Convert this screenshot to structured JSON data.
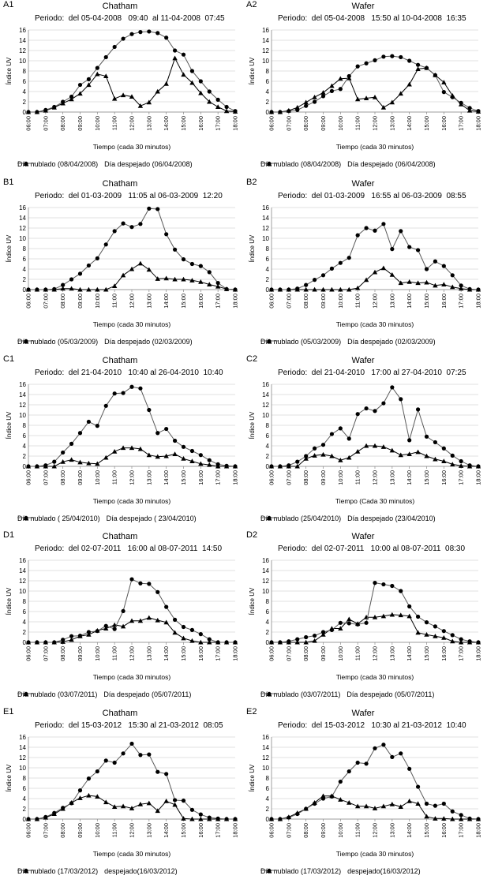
{
  "chart_data": [
    {
      "id": "A1",
      "label": "A1",
      "type": "line",
      "title": "Chatham",
      "period": "Periodo:  del 05-04-2008   09:40  al 11-04-2008  07:45",
      "xlabel": "Tiempo (cada 30 minutos)",
      "ylabel": "Índice UV",
      "ylim": [
        0,
        16
      ],
      "yticks": [
        "0",
        "2",
        "4",
        "6",
        "8",
        "10",
        "12",
        "14",
        "16"
      ],
      "xticks": [
        "06:00",
        "07:00",
        "08:00",
        "09:00",
        "10:00",
        "11:00",
        "12:00",
        "13:00",
        "14:00",
        "15:00",
        "16:00",
        "17:00",
        "18:00"
      ],
      "series": [
        {
          "name": "Día nublado (08/04/2008)",
          "marker": "triangle",
          "values": [
            0,
            0,
            0.3,
            0.9,
            1.7,
            2.5,
            3.6,
            5.3,
            7.4,
            7,
            2.6,
            3.3,
            3,
            1.2,
            1.9,
            4,
            5.5,
            10.5,
            7.3,
            5.7,
            3.7,
            2,
            1,
            0.2,
            0.1
          ]
        },
        {
          "name": "Día despejado (06/04/2008)",
          "marker": "circle",
          "values": [
            0,
            0,
            0.4,
            1,
            2,
            3,
            5.3,
            6.4,
            8.6,
            10.7,
            12.7,
            14.3,
            15.2,
            15.6,
            15.7,
            15.4,
            14.5,
            12,
            11.2,
            8,
            6,
            4,
            2.4,
            1,
            0.2
          ]
        }
      ]
    },
    {
      "id": "A2",
      "label": "A2",
      "type": "line",
      "title": "Wafer",
      "period": "Periodo:  del 05-04-2008   15:50 al 10-04-2008  16:35",
      "xlabel": "Tiempo (cada 30 minutos)",
      "ylabel": "Índice UV",
      "ylim": [
        0,
        16
      ],
      "yticks": [
        "0",
        "2",
        "4",
        "6",
        "8",
        "10",
        "12",
        "14",
        "16"
      ],
      "xticks": [
        "06:00",
        "07:00",
        "08:00",
        "09:00",
        "10:00",
        "11:00",
        "12:00",
        "13:00",
        "14:00",
        "15:00",
        "16:00",
        "17:00",
        "18:00"
      ],
      "series": [
        {
          "name": "Día nublado (08/04/2008)",
          "marker": "triangle",
          "values": [
            0,
            0,
            0.3,
            0.9,
            1.9,
            2.9,
            3.8,
            5.1,
            6.5,
            6.6,
            2.5,
            2.7,
            2.9,
            0.9,
            1.9,
            3.6,
            5.4,
            8.4,
            8.6,
            7.2,
            5.8,
            3.2,
            1.5,
            0.3,
            0.1
          ]
        },
        {
          "name": "Día despejado (06/04/2008)",
          "marker": "circle",
          "values": [
            0,
            0,
            0.2,
            0.4,
            1.2,
            2,
            3.1,
            4.1,
            4.5,
            7,
            8.9,
            9.5,
            10.1,
            10.8,
            10.9,
            10.7,
            10,
            9.2,
            8.6,
            7.2,
            3.9,
            2.9,
            1.8,
            0.8,
            0.2
          ]
        }
      ]
    },
    {
      "id": "B1",
      "label": "B1",
      "type": "line",
      "title": "Chatham",
      "period": "Periodo:  del 01-03-2009   11:05 al 06-03-2009  12:20",
      "xlabel": "Tiempo (cada 30 minutos)",
      "ylabel": "Índice UV",
      "ylim": [
        0,
        16
      ],
      "yticks": [
        "0",
        "2",
        "4",
        "6",
        "8",
        "10",
        "12",
        "14",
        "16"
      ],
      "xticks": [
        "06:00",
        "07:00",
        "08:00",
        "09:00",
        "10:00",
        "11:00",
        "12:00",
        "13:00",
        "14:00",
        "15:00",
        "16:00",
        "17:00",
        "18:00"
      ],
      "series": [
        {
          "name": "Día nublado (05/03/2009)",
          "marker": "triangle",
          "values": [
            0,
            0,
            0,
            0,
            0.2,
            0.2,
            0,
            0,
            0,
            0,
            0.7,
            2.8,
            4,
            5.1,
            3.9,
            2.1,
            2.2,
            2,
            2,
            1.8,
            1.5,
            1,
            0.6,
            0.1,
            0
          ]
        },
        {
          "name": "Día despejado (02/03/2009)",
          "marker": "circle",
          "values": [
            0,
            0,
            0,
            0.1,
            0.9,
            2,
            3.1,
            4.7,
            6.1,
            8.8,
            11.4,
            12.9,
            12.2,
            12.8,
            15.8,
            15.7,
            10.8,
            7.8,
            5.9,
            5,
            4.6,
            3.4,
            1.3,
            0.1,
            0
          ]
        }
      ]
    },
    {
      "id": "B2",
      "label": "B2",
      "type": "line",
      "title": "Wafer",
      "period": "Periodo:  del 01-03-2009   16:55 al 06-03-2009  08:55",
      "xlabel": "Tiempo (cada 30 minutos)",
      "ylabel": "Índice UV",
      "ylim": [
        0,
        16
      ],
      "yticks": [
        "0",
        "2",
        "4",
        "6",
        "8",
        "10",
        "12",
        "14",
        "16"
      ],
      "xticks": [
        "06:00",
        "07:00",
        "08:00",
        "09:00",
        "10:00",
        "11:00",
        "12:00",
        "13:00",
        "14:00",
        "15:00",
        "16:00",
        "17:00",
        "18:00"
      ],
      "series": [
        {
          "name": "Día nublado (05/03/2009)",
          "marker": "triangle",
          "values": [
            0,
            0,
            0,
            0,
            0,
            0,
            0,
            0,
            0,
            0,
            0.3,
            1.9,
            3.4,
            4.2,
            2.9,
            1.3,
            1.5,
            1.3,
            1.4,
            0.8,
            1,
            0.5,
            0.2,
            0,
            0
          ]
        },
        {
          "name": "Día despejado (02/03/2009)",
          "marker": "circle",
          "values": [
            0,
            0,
            0,
            0.2,
            0.9,
            1.9,
            2.8,
            4.1,
            5.2,
            6.2,
            10.6,
            12,
            11.5,
            12.8,
            7.9,
            11.4,
            8.3,
            7.7,
            4,
            5.5,
            4.6,
            2.8,
            0.8,
            0.1,
            0
          ]
        }
      ]
    },
    {
      "id": "C1",
      "label": "C1",
      "type": "line",
      "title": "Chatham",
      "period": "Periodo:  del 21-04-2010   10:40 al 26-04-2010  10:40",
      "xlabel": "Tiempo (cada 30 minutos)",
      "ylabel": "Índice UV",
      "ylim": [
        0,
        16
      ],
      "yticks": [
        "0",
        "2",
        "4",
        "6",
        "8",
        "10",
        "12",
        "14",
        "16"
      ],
      "xticks": [
        "06:00",
        "07:00",
        "08:00",
        "09:00",
        "10:00",
        "11:00",
        "12:00",
        "13:00",
        "14:00",
        "15:00",
        "16:00",
        "17:00",
        "18:00"
      ],
      "series": [
        {
          "name": "Día nublado ( 25/04/2010)",
          "marker": "triangle",
          "values": [
            0,
            0,
            0,
            0,
            0.9,
            1.3,
            0.8,
            0.6,
            0.5,
            1.7,
            2.9,
            3.6,
            3.6,
            3.4,
            2.2,
            1.9,
            2,
            2.4,
            1.5,
            1,
            0.5,
            0.3,
            0,
            0,
            0
          ]
        },
        {
          "name": "Día despejado ( 23/04/2010)",
          "marker": "circle",
          "values": [
            0,
            0,
            0.2,
            0.9,
            2.7,
            4.4,
            6.5,
            8.7,
            7.9,
            11.8,
            14.2,
            14.3,
            15.5,
            15.2,
            11,
            6.5,
            7.3,
            5,
            3.8,
            3,
            2.2,
            1.2,
            0.4,
            0.1,
            0
          ]
        }
      ]
    },
    {
      "id": "C2",
      "label": "C2",
      "type": "line",
      "title": "Wafer",
      "period": "Periodo:  del 21-04-2010   17:00 al 27-04-2010  07:25",
      "xlabel": "Tiempo (Cada 30 minutos)",
      "ylabel": "Índice UV",
      "ylim": [
        0,
        16
      ],
      "yticks": [
        "0",
        "2",
        "4",
        "6",
        "8",
        "10",
        "12",
        "14",
        "16"
      ],
      "xticks": [
        "06:00",
        "07:00",
        "08:00",
        "09:00",
        "10:00",
        "11:00",
        "12:00",
        "13:00",
        "14:00",
        "15:00",
        "16:00",
        "17:00",
        "18:00"
      ],
      "series": [
        {
          "name": "Día nublado (25/04/2010)",
          "marker": "triangle",
          "values": [
            0,
            0,
            0,
            0,
            1.5,
            2.1,
            2.3,
            2,
            1.2,
            1.7,
            2.9,
            4,
            4,
            3.8,
            3.1,
            2.2,
            2.4,
            2.8,
            2,
            1.4,
            1,
            0.4,
            0.1,
            0,
            0
          ]
        },
        {
          "name": "Día despejado (23/04/2010)",
          "marker": "circle",
          "values": [
            0,
            0,
            0.2,
            0.9,
            2,
            3.5,
            4.2,
            6.3,
            7.4,
            5.4,
            10.2,
            11.3,
            10.8,
            12.3,
            15.4,
            13.1,
            5.1,
            11.1,
            5.8,
            4.7,
            3.5,
            2.1,
            1,
            0.2,
            0
          ]
        }
      ]
    },
    {
      "id": "D1",
      "label": "D1",
      "type": "line",
      "title": "Chatham",
      "period": "Periodo:  del 02-07-2011   16:00 al 08-07-2011  14:50",
      "xlabel": "Tiempo (cada 30 minutos)",
      "ylabel": "Índice UV",
      "ylim": [
        0,
        16
      ],
      "yticks": [
        "0",
        "2",
        "4",
        "6",
        "8",
        "10",
        "12",
        "14",
        "16"
      ],
      "xticks": [
        "06:00",
        "07:00",
        "08:00",
        "09:00",
        "10:00",
        "11:00",
        "12:00",
        "13:00",
        "14:00",
        "15:00",
        "16:00",
        "17:00",
        "18:00"
      ],
      "series": [
        {
          "name": "Día nublado (03/07/2011)",
          "marker": "triangle",
          "values": [
            0,
            0,
            0,
            0,
            0.1,
            0.5,
            1.2,
            1.5,
            2.3,
            2.7,
            3.4,
            3.1,
            4.2,
            4.2,
            4.8,
            4.3,
            3.9,
            1.9,
            0.8,
            0.3,
            0,
            0,
            0,
            0,
            0
          ]
        },
        {
          "name": "Día despejado (05/07/2011)",
          "marker": "circle",
          "values": [
            0,
            0,
            0,
            0,
            0.5,
            1.2,
            1.3,
            2,
            2.2,
            3.2,
            2.6,
            6.1,
            12.3,
            11.5,
            11.4,
            9.8,
            6.9,
            4.4,
            3,
            2.4,
            1.6,
            0.6,
            0,
            0,
            0
          ]
        }
      ]
    },
    {
      "id": "D2",
      "label": "D2",
      "type": "line",
      "title": "Wafer",
      "period": "Periodo:  del 02-07-2011   10:00 al 08-07-2011  08:30",
      "xlabel": "Tiempo (cada 30 minutos)",
      "ylabel": "Índice UV",
      "ylim": [
        0,
        16
      ],
      "yticks": [
        "0",
        "2",
        "4",
        "6",
        "8",
        "10",
        "12",
        "14",
        "16"
      ],
      "xticks": [
        "06:00",
        "07:00",
        "08:00",
        "09:00",
        "10:00",
        "11:00",
        "12:00",
        "13:00",
        "14:00",
        "15:00",
        "16:00",
        "17:00",
        "18:00"
      ],
      "series": [
        {
          "name": "Día nublado (03/07/2011)",
          "marker": "triangle",
          "values": [
            0,
            0,
            0,
            0,
            0,
            0.3,
            1.5,
            2.7,
            2.7,
            4.5,
            3.6,
            4.9,
            4.9,
            5.1,
            5.4,
            5.3,
            5.1,
            1.9,
            1.5,
            1.2,
            0.9,
            0.2,
            0,
            0,
            0
          ]
        },
        {
          "name": "Día despejado (05/07/2011)",
          "marker": "circle",
          "values": [
            0,
            0,
            0.2,
            0.6,
            1,
            1.3,
            2,
            2.4,
            3.8,
            3.7,
            3.5,
            3.8,
            11.6,
            11.3,
            11,
            10,
            7,
            5,
            3.9,
            3.1,
            2.2,
            1.4,
            0.6,
            0.2,
            0
          ]
        }
      ]
    },
    {
      "id": "E1",
      "label": "E1",
      "type": "line",
      "title": "Chatham",
      "period": "Periodo:  del 15-03-2012   15:30 al 21-03-2012  08:05",
      "xlabel": "Tiempo (cada 30 minutos)",
      "ylabel": "Índice UV",
      "ylim": [
        0,
        16
      ],
      "yticks": [
        "0",
        "2",
        "4",
        "6",
        "8",
        "10",
        "12",
        "14",
        "16"
      ],
      "xticks": [
        "06:00",
        "07:00",
        "08:00",
        "09:00",
        "10:00",
        "11:00",
        "12:00",
        "13:00",
        "14:00",
        "15:00",
        "16:00",
        "17:00",
        "18:00"
      ],
      "series": [
        {
          "name": "Día nublado (17/03/2012)",
          "marker": "triangle",
          "values": [
            0,
            0,
            0.3,
            1,
            2,
            3.2,
            4.1,
            4.6,
            4.4,
            3.3,
            2.4,
            2.5,
            2.1,
            2.9,
            3.1,
            1.6,
            3.5,
            2.8,
            0.1,
            0,
            0,
            0,
            0,
            0,
            0
          ]
        },
        {
          "name": "despejado(16/03/2012)",
          "marker": "circle",
          "values": [
            0,
            0,
            0.4,
            1.2,
            2.2,
            3.1,
            5.6,
            7.9,
            9.3,
            11.4,
            11,
            12.8,
            14.7,
            12.5,
            12.6,
            9.2,
            8.8,
            3.7,
            3.6,
            1.8,
            0.9,
            0.3,
            0.1,
            0,
            0
          ]
        }
      ]
    },
    {
      "id": "E2",
      "label": "E2",
      "type": "line",
      "title": "Wafer",
      "period": "Periodo:  del 15-03-2012   10:30 al 21-03-2012  10:40",
      "xlabel": "Tiempo (cada 30 minutos)",
      "ylabel": "Índice UV",
      "ylim": [
        0,
        16
      ],
      "yticks": [
        "0",
        "2",
        "4",
        "6",
        "8",
        "10",
        "12",
        "14",
        "16"
      ],
      "xticks": [
        "06:00",
        "07:00",
        "08:00",
        "09:00",
        "10:00",
        "11:00",
        "12:00",
        "13:00",
        "14:00",
        "15:00",
        "16:00",
        "17:00",
        "18:00"
      ],
      "series": [
        {
          "name": "Día nublado (17/03/2012)",
          "marker": "triangle",
          "values": [
            0,
            0,
            0.4,
            1.2,
            2,
            3.2,
            4.5,
            4.5,
            3.8,
            3.2,
            2.5,
            2.5,
            2.1,
            2.5,
            2.9,
            2.4,
            3.5,
            3,
            0.5,
            0.1,
            0.1,
            0,
            0,
            0,
            0
          ]
        },
        {
          "name": "despejado(16/03/2012)",
          "marker": "circle",
          "values": [
            0,
            0,
            0.3,
            1,
            2,
            3,
            4,
            4.4,
            7.3,
            9.3,
            11,
            10.8,
            13.8,
            14.5,
            12.1,
            12.8,
            9.8,
            6.3,
            3,
            2.6,
            3,
            1.5,
            0.8,
            0.1,
            0
          ]
        }
      ]
    }
  ]
}
